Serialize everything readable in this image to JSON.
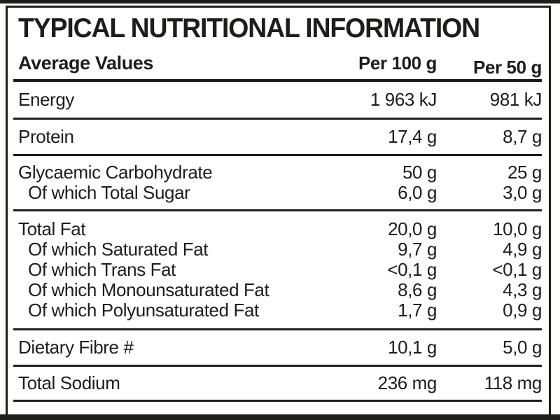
{
  "title": "TYPICAL NUTRITIONAL INFORMATION",
  "header": {
    "label": "Average Values",
    "per100": "Per 100 g",
    "per50": "Per 50 g"
  },
  "colors": {
    "ink": "#1d1d1b",
    "background": "#ffffff"
  },
  "table": {
    "sections": [
      {
        "rows": [
          {
            "label": "Energy",
            "per100": "1 963 kJ",
            "per50": "981 kJ"
          }
        ]
      },
      {
        "rows": [
          {
            "label": "Protein",
            "per100": "17,4 g",
            "per50": "8,7 g"
          }
        ]
      },
      {
        "rows": [
          {
            "label": "Glycaemic Carbohydrate",
            "per100": "50 g",
            "per50": "25 g"
          },
          {
            "label": "Of which Total Sugar",
            "per100": "6,0 g",
            "per50": "3,0 g"
          }
        ]
      },
      {
        "rows": [
          {
            "label": "Total Fat",
            "per100": "20,0 g",
            "per50": "10,0 g"
          },
          {
            "label": "Of which Saturated Fat",
            "per100": "9,7 g",
            "per50": "4,9 g"
          },
          {
            "label": "Of which Trans Fat",
            "per100": "<0,1 g",
            "per50": "<0,1 g"
          },
          {
            "label": "Of which Monounsaturated Fat",
            "per100": "8,6 g",
            "per50": "4,3 g"
          },
          {
            "label": "Of which Polyunsaturated Fat",
            "per100": "1,7 g",
            "per50": "0,9 g"
          }
        ]
      },
      {
        "rows": [
          {
            "label": "Dietary Fibre #",
            "per100": "10,1 g",
            "per50": "5,0 g"
          }
        ]
      },
      {
        "rows": [
          {
            "label": "Total Sodium",
            "per100": "236 mg",
            "per50": "118 mg"
          }
        ]
      }
    ]
  }
}
